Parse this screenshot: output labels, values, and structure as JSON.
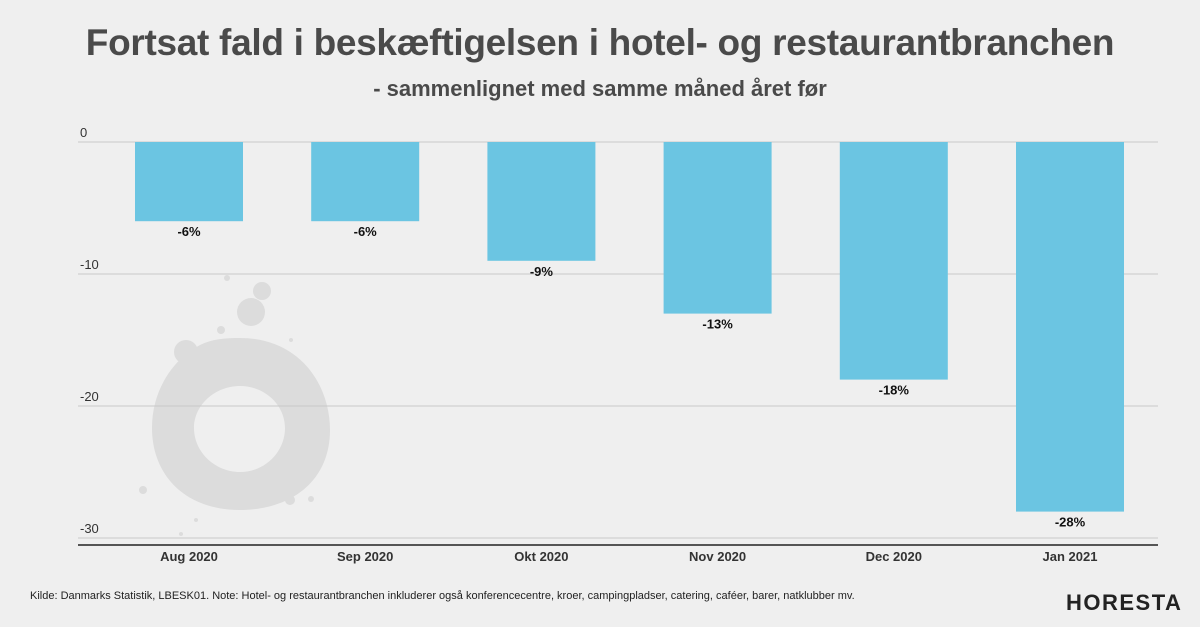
{
  "header": {
    "title": "Fortsat fald i beskæftigelsen i hotel- og restaurantbranchen",
    "subtitle": "- sammenlignet med samme måned året før"
  },
  "footer": {
    "source_note": "Kilde: Danmarks Statistik, LBESK01. Note: Hotel- og restaurantbranchen inkluderer også konferencecentre, kroer, campingpladser, catering, caféer, barer, natklubber mv.",
    "logo_text": "HORESTA"
  },
  "colors": {
    "bar": "#6bc5e2",
    "grid": "#c9c9c9",
    "axis": "#222222",
    "watermark": "#dcdcdc"
  },
  "chart_data": {
    "type": "bar",
    "categories": [
      "Aug 2020",
      "Sep 2020",
      "Okt 2020",
      "Nov 2020",
      "Dec 2020",
      "Jan 2021"
    ],
    "values": [
      -6,
      -6,
      -9,
      -13,
      -18,
      -28
    ],
    "data_labels": [
      "-6%",
      "-6%",
      "-9%",
      "-13%",
      "-18%",
      "-28%"
    ],
    "yticks": [
      0,
      -10,
      -20,
      -30
    ],
    "ytick_labels": [
      "0",
      "-10",
      "-20",
      "-30"
    ],
    "ylim": [
      -30,
      0
    ],
    "grid": true,
    "legend": "none"
  }
}
